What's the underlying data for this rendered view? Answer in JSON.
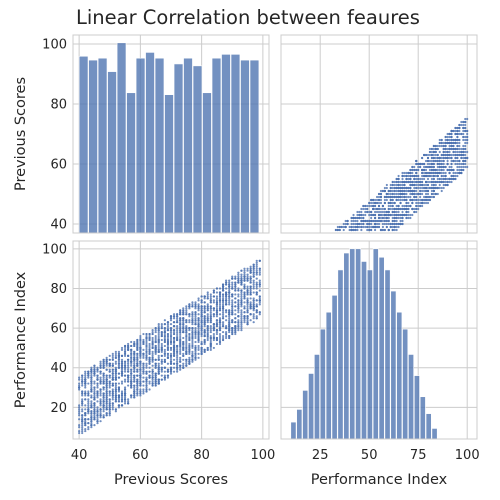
{
  "title": "Linear Correlation between feaures",
  "colors": {
    "bar": "#4c72b0",
    "point": "#4c72b0",
    "grid": "#cccccc",
    "text": "#262626"
  },
  "chart_data": {
    "type": "pairplot",
    "title": "Linear Correlation between feaures",
    "variables": [
      "Previous Scores",
      "Performance Index"
    ],
    "grid": true,
    "xlim_previous": [
      38,
      102
    ],
    "xlim_performance": [
      5,
      105
    ],
    "x_ticks_previous": [
      40,
      60,
      80,
      100
    ],
    "x_ticks_performance": [
      25,
      50,
      75,
      100
    ],
    "y_ticks_previous": [
      40,
      60,
      80,
      100
    ],
    "y_ticks_performance": [
      20,
      40,
      60,
      80,
      100
    ],
    "panels": [
      {
        "type": "bar",
        "position": "top-left",
        "variable": "Previous Scores",
        "bins_start": 40,
        "bin_width": 3.1,
        "values": [
          92,
          90,
          91,
          84,
          99,
          73,
          91,
          94,
          91,
          72,
          88,
          91,
          87,
          73,
          91,
          93,
          93,
          90,
          90
        ]
      },
      {
        "type": "scatter",
        "position": "top-right",
        "x": "Performance Index",
        "y": "Previous Scores",
        "trend": {
          "slope": 0.56,
          "intercept": 11,
          "spread": 17
        }
      },
      {
        "type": "scatter",
        "position": "bottom-left",
        "x": "Previous Scores",
        "y": "Performance Index",
        "trend": {
          "slope": 1.0,
          "intercept": -19,
          "spread": 30
        }
      },
      {
        "type": "bar",
        "position": "bottom-right",
        "variable": "Performance Index",
        "bins_start": 10,
        "bin_width": 3.0,
        "values": [
          8,
          14,
          23,
          31,
          40,
          52,
          60,
          68,
          80,
          88,
          90,
          90,
          84,
          80,
          90,
          86,
          80,
          70,
          60,
          52,
          40,
          30,
          20,
          12,
          5
        ]
      }
    ]
  }
}
